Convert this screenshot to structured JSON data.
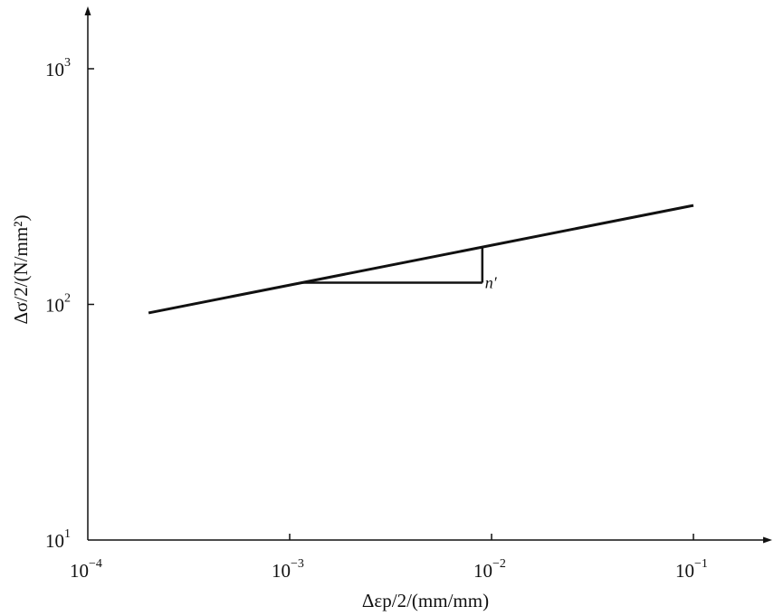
{
  "chart_data": {
    "type": "line",
    "x_scale": "log",
    "y_scale": "log",
    "xlim": [
      0.0001,
      0.1
    ],
    "ylim": [
      10,
      1000
    ],
    "x_ticks": [
      {
        "base": "10",
        "exp": "−4"
      },
      {
        "base": "10",
        "exp": "−3"
      },
      {
        "base": "10",
        "exp": "−2"
      },
      {
        "base": "10",
        "exp": "−1"
      }
    ],
    "y_ticks": [
      {
        "base": "10",
        "exp": "1"
      },
      {
        "base": "10",
        "exp": "2"
      },
      {
        "base": "10",
        "exp": "3"
      }
    ],
    "xlabel": "Δεp/2/(mm/mm)",
    "ylabel": "Δσ/2/(N/mm²)",
    "series": [
      {
        "x": [
          0.0002,
          0.1
        ],
        "y": [
          92,
          263
        ]
      }
    ],
    "slope_triangle": {
      "x_start": 0.00115,
      "x_end": 0.009,
      "label": "n′"
    },
    "grid": false,
    "line_color": "#111111"
  }
}
